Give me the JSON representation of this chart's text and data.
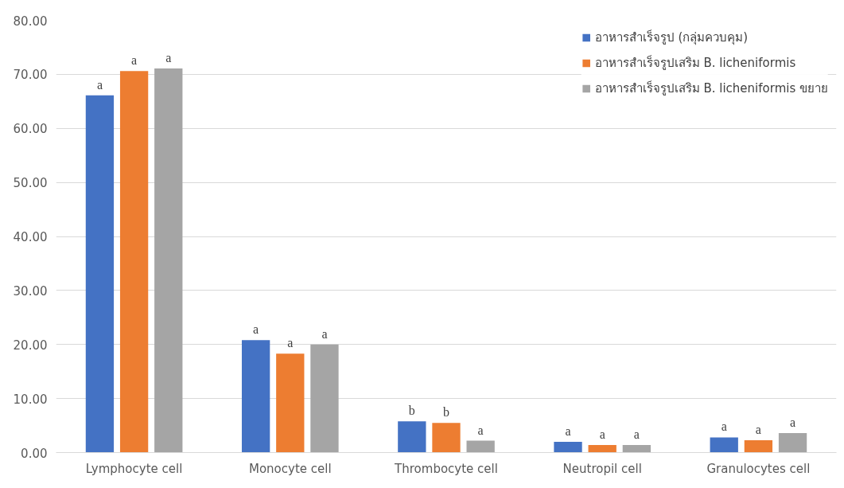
{
  "chart_data": {
    "type": "bar",
    "categories": [
      "Lymphocyte cell",
      "Monocyte cell",
      "Thrombocyte cell",
      "Neutropil cell",
      "Granulocytes cell"
    ],
    "series": [
      {
        "name": "อาหารสำเร็จรูป (กลุ่มควบคุม)",
        "color": "#4472c4",
        "values": [
          66.1,
          20.8,
          5.8,
          2.0,
          2.8
        ],
        "value_labels": [
          "a",
          "a",
          "b",
          "a",
          "a"
        ]
      },
      {
        "name": "อาหารสำเร็จรูปเสริม B. licheniformis",
        "color": "#ed7d31",
        "values": [
          70.6,
          18.3,
          5.5,
          1.4,
          2.3
        ],
        "value_labels": [
          "a",
          "a",
          "b",
          "a",
          "a"
        ]
      },
      {
        "name": "อาหารสำเร็จรูปเสริม B. licheniformis ขยาย",
        "color": "#a5a5a5",
        "values": [
          71.1,
          20.0,
          2.2,
          1.4,
          3.6
        ],
        "value_labels": [
          "a",
          "a",
          "a",
          "a",
          "a"
        ]
      }
    ],
    "ylim": [
      0,
      80
    ],
    "yticks": [
      {
        "value": 0,
        "label": "0.00"
      },
      {
        "value": 10,
        "label": "10.00"
      },
      {
        "value": 20,
        "label": "20.00"
      },
      {
        "value": 30,
        "label": "30.00"
      },
      {
        "value": 40,
        "label": "40.00"
      },
      {
        "value": 50,
        "label": "50.00"
      },
      {
        "value": 60,
        "label": "60.00"
      },
      {
        "value": 70,
        "label": "70.00"
      },
      {
        "value": 80,
        "label": "80.00"
      }
    ],
    "grid": "y",
    "legend": "top right"
  }
}
